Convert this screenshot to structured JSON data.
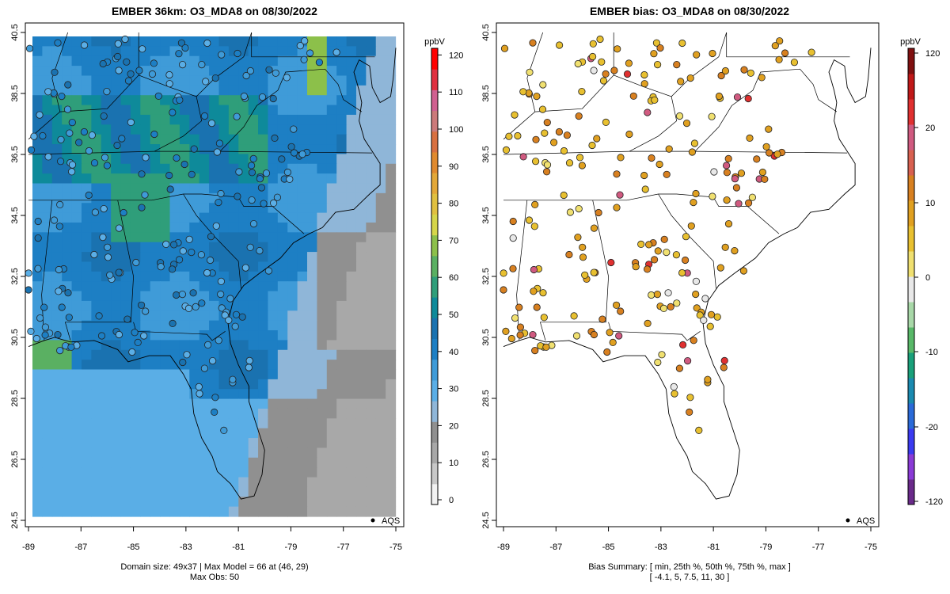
{
  "left_panel": {
    "title": "EMBER 36km: O3_MDA8 on 08/30/2022",
    "caption_line1": "Domain size: 49x37 | Max Model = 66 at (46, 29)",
    "caption_line2": "Max Obs: 50",
    "legend_label": "AQS"
  },
  "right_panel": {
    "title": "EMBER bias: O3_MDA8 on 08/30/2022",
    "caption_line1": "Bias Summary: [ min, 25th %, 50th %, 75th %, max ]",
    "caption_line2": "[ -4.1,   5,   7.5,   11,   30 ]",
    "legend_label": "AQS"
  },
  "axes": {
    "x_ticks": [
      "-89",
      "-87",
      "-85",
      "-83",
      "-81",
      "-79",
      "-77",
      "-75"
    ],
    "y_ticks": [
      "24.5",
      "26.5",
      "28.5",
      "30.5",
      "32.5",
      "34.5",
      "36.5",
      "38.5",
      "40.5"
    ]
  },
  "colorbar_conc": {
    "unit": "ppbV",
    "ticks": [
      "0",
      "10",
      "20",
      "30",
      "40",
      "50",
      "60",
      "70",
      "80",
      "90",
      "100",
      "110",
      "120"
    ],
    "colors": [
      "#f2f2f2",
      "#c8c8c8",
      "#a8a8a8",
      "#909090",
      "#8fb6d8",
      "#5aaee6",
      "#3f9bd8",
      "#1d7fc4",
      "#1a72b0",
      "#0e8a9a",
      "#2f9e7a",
      "#5ab062",
      "#8cc04a",
      "#d6d64a",
      "#e0c040",
      "#e3a838",
      "#e08a2e",
      "#d87040",
      "#cc7a7a",
      "#d06090",
      "#e03040",
      "#ff0000"
    ]
  },
  "colorbar_bias": {
    "unit": "ppbV",
    "ticks": [
      "-120",
      "-20",
      "-10",
      "0",
      "10",
      "20",
      "120"
    ],
    "colors": [
      "#6a2a8a",
      "#8a3ad6",
      "#3a3af0",
      "#2a6ad8",
      "#1a8ab0",
      "#19a07a",
      "#58b868",
      "#a8d8a8",
      "#e8e8e8",
      "#f0e070",
      "#e8c030",
      "#e0a020",
      "#d88020",
      "#d86050",
      "#d05a80",
      "#e03030",
      "#c01818",
      "#801010"
    ]
  }
}
